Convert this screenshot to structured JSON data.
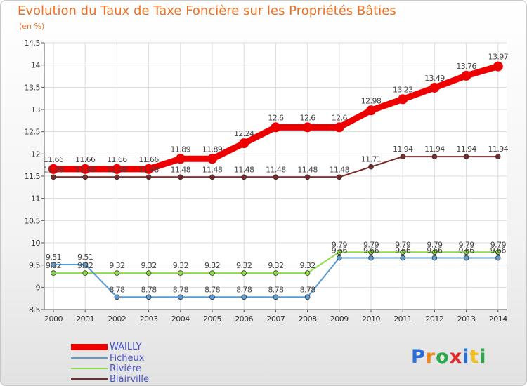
{
  "title": "Evolution du Taux de Taxe Foncière sur les Propriétés Bâties",
  "unit_label": "(en %)",
  "brand": "Proxiti",
  "chart_data": {
    "type": "line",
    "title": "Evolution du Taux de Taxe Foncière sur les Propriétés Bâties",
    "ylabel": "(en %)",
    "ylim": [
      8.5,
      14.5
    ],
    "grid": true,
    "legend_position": "bottom-left",
    "x": [
      "2000",
      "2001",
      "2002",
      "2003",
      "2004",
      "2005",
      "2006",
      "2007",
      "2008",
      "2009",
      "2010",
      "2011",
      "2012",
      "2013",
      "2014"
    ],
    "yticks": [
      "8.5",
      "9",
      "9.5",
      "10",
      "10.5",
      "11",
      "11.5",
      "12",
      "12.5",
      "13",
      "13.5",
      "14",
      "14.5"
    ],
    "series": [
      {
        "name": "WAILLY",
        "color": "#ee0000",
        "bold": true,
        "values": [
          11.66,
          11.66,
          11.66,
          11.66,
          11.89,
          11.89,
          12.24,
          12.6,
          12.6,
          12.6,
          12.98,
          13.23,
          13.49,
          13.76,
          13.97
        ],
        "labels": [
          "11.66",
          "11.66",
          "11.66",
          "11.66",
          "11.89",
          "11.89",
          "12.24",
          "12.6",
          "12.6",
          "12.6",
          "12.98",
          "13.23",
          "13.49",
          "13.76",
          "13.97"
        ]
      },
      {
        "name": "Ficheux",
        "color": "#5a9bd4",
        "bold": false,
        "values": [
          9.51,
          9.51,
          8.78,
          8.78,
          8.78,
          8.78,
          8.78,
          8.78,
          8.78,
          9.66,
          9.66,
          9.66,
          9.66,
          9.66,
          9.66
        ],
        "labels": [
          "9.51",
          "9.51",
          "8.78",
          "8.78",
          "8.78",
          "8.78",
          "8.78",
          "8.78",
          "8.78",
          "9.66",
          "9.66",
          "9.66",
          "9.66",
          "9.66",
          "9.66"
        ]
      },
      {
        "name": "Rivière",
        "color": "#8fdc4a",
        "bold": false,
        "values": [
          9.32,
          9.32,
          9.32,
          9.32,
          9.32,
          9.32,
          9.32,
          9.32,
          9.32,
          9.79,
          9.79,
          9.79,
          9.79,
          9.79,
          9.79
        ],
        "labels": [
          "9.32",
          "9.32",
          "9.32",
          "9.32",
          "9.32",
          "9.32",
          "9.32",
          "9.32",
          "9.32",
          "9.79",
          "9.79",
          "9.79",
          "9.79",
          "9.79",
          "9.79"
        ]
      },
      {
        "name": "Blairville",
        "color": "#7a2a2a",
        "bold": false,
        "values": [
          11.48,
          11.48,
          11.48,
          11.48,
          11.48,
          11.48,
          11.48,
          11.48,
          11.48,
          11.48,
          11.71,
          11.94,
          11.94,
          11.94,
          11.94
        ],
        "labels": [
          "11.48",
          "11.48",
          "11.48",
          "11.48",
          "11.48",
          "11.48",
          "11.48",
          "11.48",
          "11.48",
          "11.48",
          "11.71",
          "11.94",
          "11.94",
          "11.94",
          "11.94"
        ]
      }
    ]
  }
}
